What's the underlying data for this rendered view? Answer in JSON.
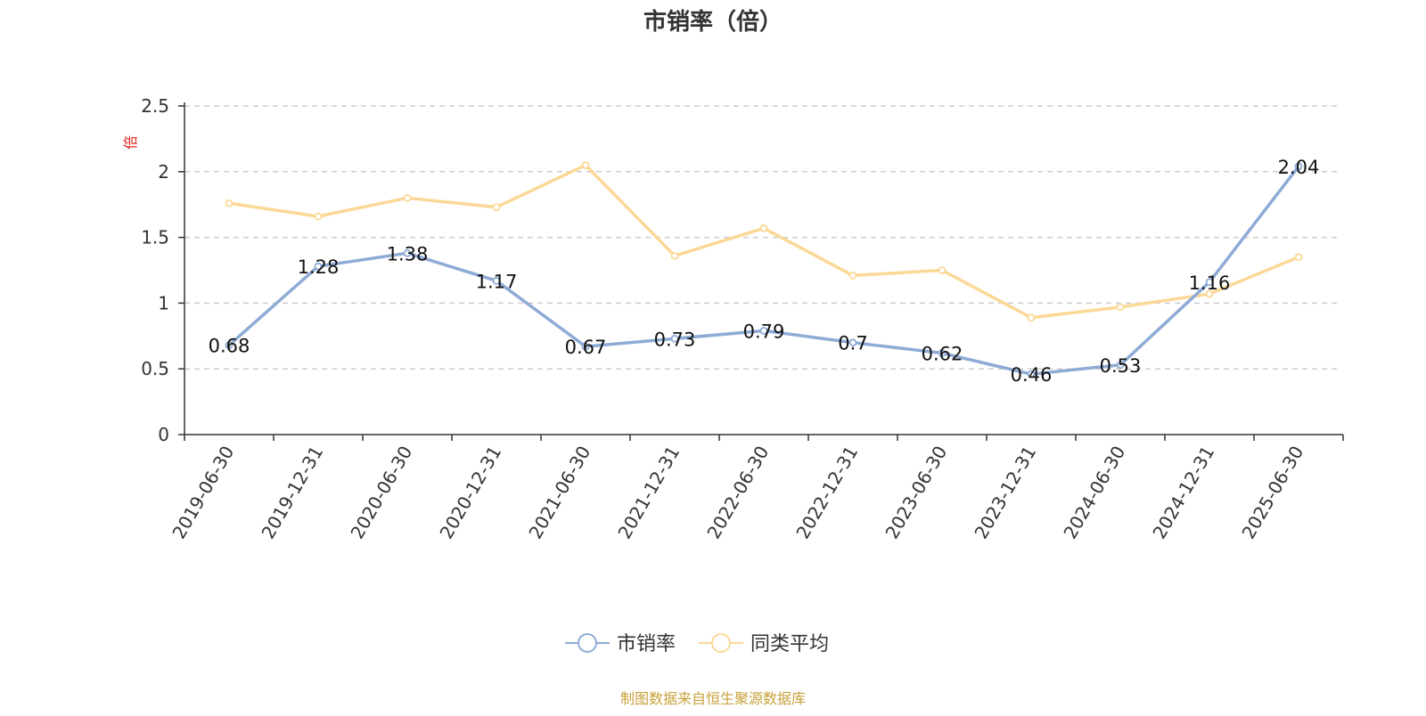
{
  "chart_data": {
    "type": "line",
    "title": "市销率（倍）",
    "ylabel": "倍",
    "ylim": [
      0,
      2.5
    ],
    "yticks": [
      "0",
      "0.5",
      "1",
      "1.5",
      "2",
      "2.5"
    ],
    "x": [
      "2019-06-30",
      "2019-12-31",
      "2020-06-30",
      "2020-12-31",
      "2021-06-30",
      "2021-12-31",
      "2022-06-30",
      "2022-12-31",
      "2023-06-30",
      "2023-12-31",
      "2024-06-30",
      "2024-12-31",
      "2025-06-30"
    ],
    "series": [
      {
        "name": "市销率",
        "color": "#8eabd6",
        "values": [
          0.68,
          1.28,
          1.38,
          1.17,
          0.67,
          0.73,
          0.79,
          0.7,
          0.62,
          0.46,
          0.53,
          1.16,
          2.04
        ],
        "labels": [
          "0.68",
          "1.28",
          "1.38",
          "1.17",
          "0.67",
          "0.73",
          "0.79",
          "0.7",
          "0.62",
          "0.46",
          "0.53",
          "1.16",
          "2.04"
        ]
      },
      {
        "name": "同类平均",
        "color": "#fbd896",
        "values": [
          1.76,
          1.66,
          1.8,
          1.73,
          2.05,
          1.36,
          1.57,
          1.21,
          1.25,
          0.89,
          0.97,
          1.07,
          1.35
        ]
      }
    ],
    "grid": true,
    "legend_position": "bottom-center"
  },
  "footer": {
    "source": "制图数据来自恒生聚源数据库",
    "color": "#c8a13a"
  },
  "colors": {
    "axis": "#333333",
    "grid": "#cccccc",
    "unit": "#e02020"
  }
}
